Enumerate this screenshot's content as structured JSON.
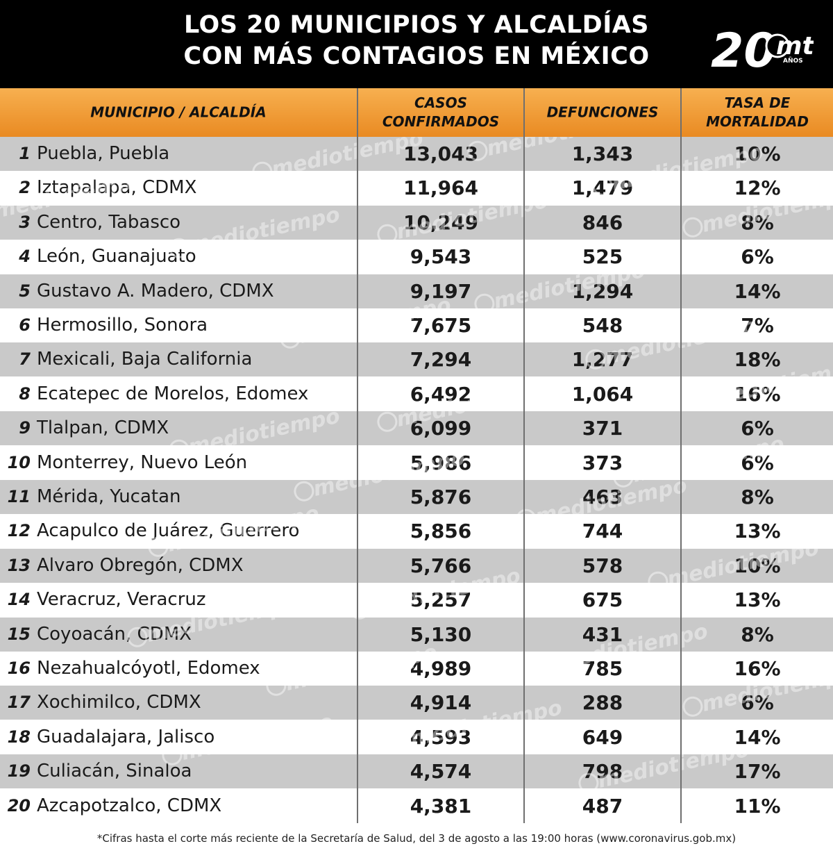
{
  "title": {
    "line1": "LOS 20 MUNICIPIOS Y ALCALDÍAS",
    "line2": "CON MÁS CONTAGIOS EN MÉXICO"
  },
  "logo": {
    "big": "20",
    "mt": "mt",
    "anos": "AÑOS"
  },
  "watermark": "mediotiempo",
  "colors": {
    "header_bg": "#000000",
    "column_header": "#f0a040",
    "row_shaded": "#c9c9c9",
    "row_plain": "#ffffff"
  },
  "chart_data": {
    "type": "table",
    "columns": [
      "MUNICIPIO / ALCALDÍA",
      "CASOS CONFIRMADOS",
      "DEFUNCIONES",
      "TASA DE MORTALIDAD"
    ],
    "rows": [
      {
        "rank": "1",
        "name": "Puebla, Puebla",
        "casos": "13,043",
        "defunciones": "1,343",
        "tasa": "10%"
      },
      {
        "rank": "2",
        "name": "Iztapalapa, CDMX",
        "casos": "11,964",
        "defunciones": "1,479",
        "tasa": "12%"
      },
      {
        "rank": "3",
        "name": "Centro, Tabasco",
        "casos": "10,249",
        "defunciones": "846",
        "tasa": "8%"
      },
      {
        "rank": "4",
        "name": "León, Guanajuato",
        "casos": "9,543",
        "defunciones": "525",
        "tasa": "6%"
      },
      {
        "rank": "5",
        "name": "Gustavo A. Madero, CDMX",
        "casos": "9,197",
        "defunciones": "1,294",
        "tasa": "14%"
      },
      {
        "rank": "6",
        "name": "Hermosillo, Sonora",
        "casos": "7,675",
        "defunciones": "548",
        "tasa": "7%"
      },
      {
        "rank": "7",
        "name": "Mexicali, Baja California",
        "casos": "7,294",
        "defunciones": "1,277",
        "tasa": "18%"
      },
      {
        "rank": "8",
        "name": "Ecatepec de Morelos, Edomex",
        "casos": "6,492",
        "defunciones": "1,064",
        "tasa": "16%"
      },
      {
        "rank": "9",
        "name": "Tlalpan, CDMX",
        "casos": "6,099",
        "defunciones": "371",
        "tasa": "6%"
      },
      {
        "rank": "10",
        "name": "Monterrey, Nuevo León",
        "casos": "5,986",
        "defunciones": "373",
        "tasa": "6%"
      },
      {
        "rank": "11",
        "name": "Mérida, Yucatan",
        "casos": "5,876",
        "defunciones": "463",
        "tasa": "8%"
      },
      {
        "rank": "12",
        "name": "Acapulco de Juárez, Guerrero",
        "casos": "5,856",
        "defunciones": "744",
        "tasa": "13%"
      },
      {
        "rank": "13",
        "name": "Alvaro Obregón, CDMX",
        "casos": "5,766",
        "defunciones": "578",
        "tasa": "10%"
      },
      {
        "rank": "14",
        "name": "Veracruz, Veracruz",
        "casos": "5,257",
        "defunciones": "675",
        "tasa": "13%"
      },
      {
        "rank": "15",
        "name": "Coyoacán, CDMX",
        "casos": "5,130",
        "defunciones": "431",
        "tasa": "8%"
      },
      {
        "rank": "16",
        "name": "Nezahualcóyotl, Edomex",
        "casos": "4,989",
        "defunciones": "785",
        "tasa": "16%"
      },
      {
        "rank": "17",
        "name": "Xochimilco, CDMX",
        "casos": "4,914",
        "defunciones": "288",
        "tasa": "6%"
      },
      {
        "rank": "18",
        "name": "Guadalajara, Jalisco",
        "casos": "4,593",
        "defunciones": "649",
        "tasa": "14%"
      },
      {
        "rank": "19",
        "name": "Culiacán, Sinaloa",
        "casos": "4,574",
        "defunciones": "798",
        "tasa": "17%"
      },
      {
        "rank": "20",
        "name": "Azcapotzalco, CDMX",
        "casos": "4,381",
        "defunciones": "487",
        "tasa": "11%"
      }
    ]
  },
  "footnote": "*Cifras hasta el corte más reciente de la Secretaría de Salud, del 3 de agosto a las 19:00 horas (www.coronavirus.gob.mx)"
}
